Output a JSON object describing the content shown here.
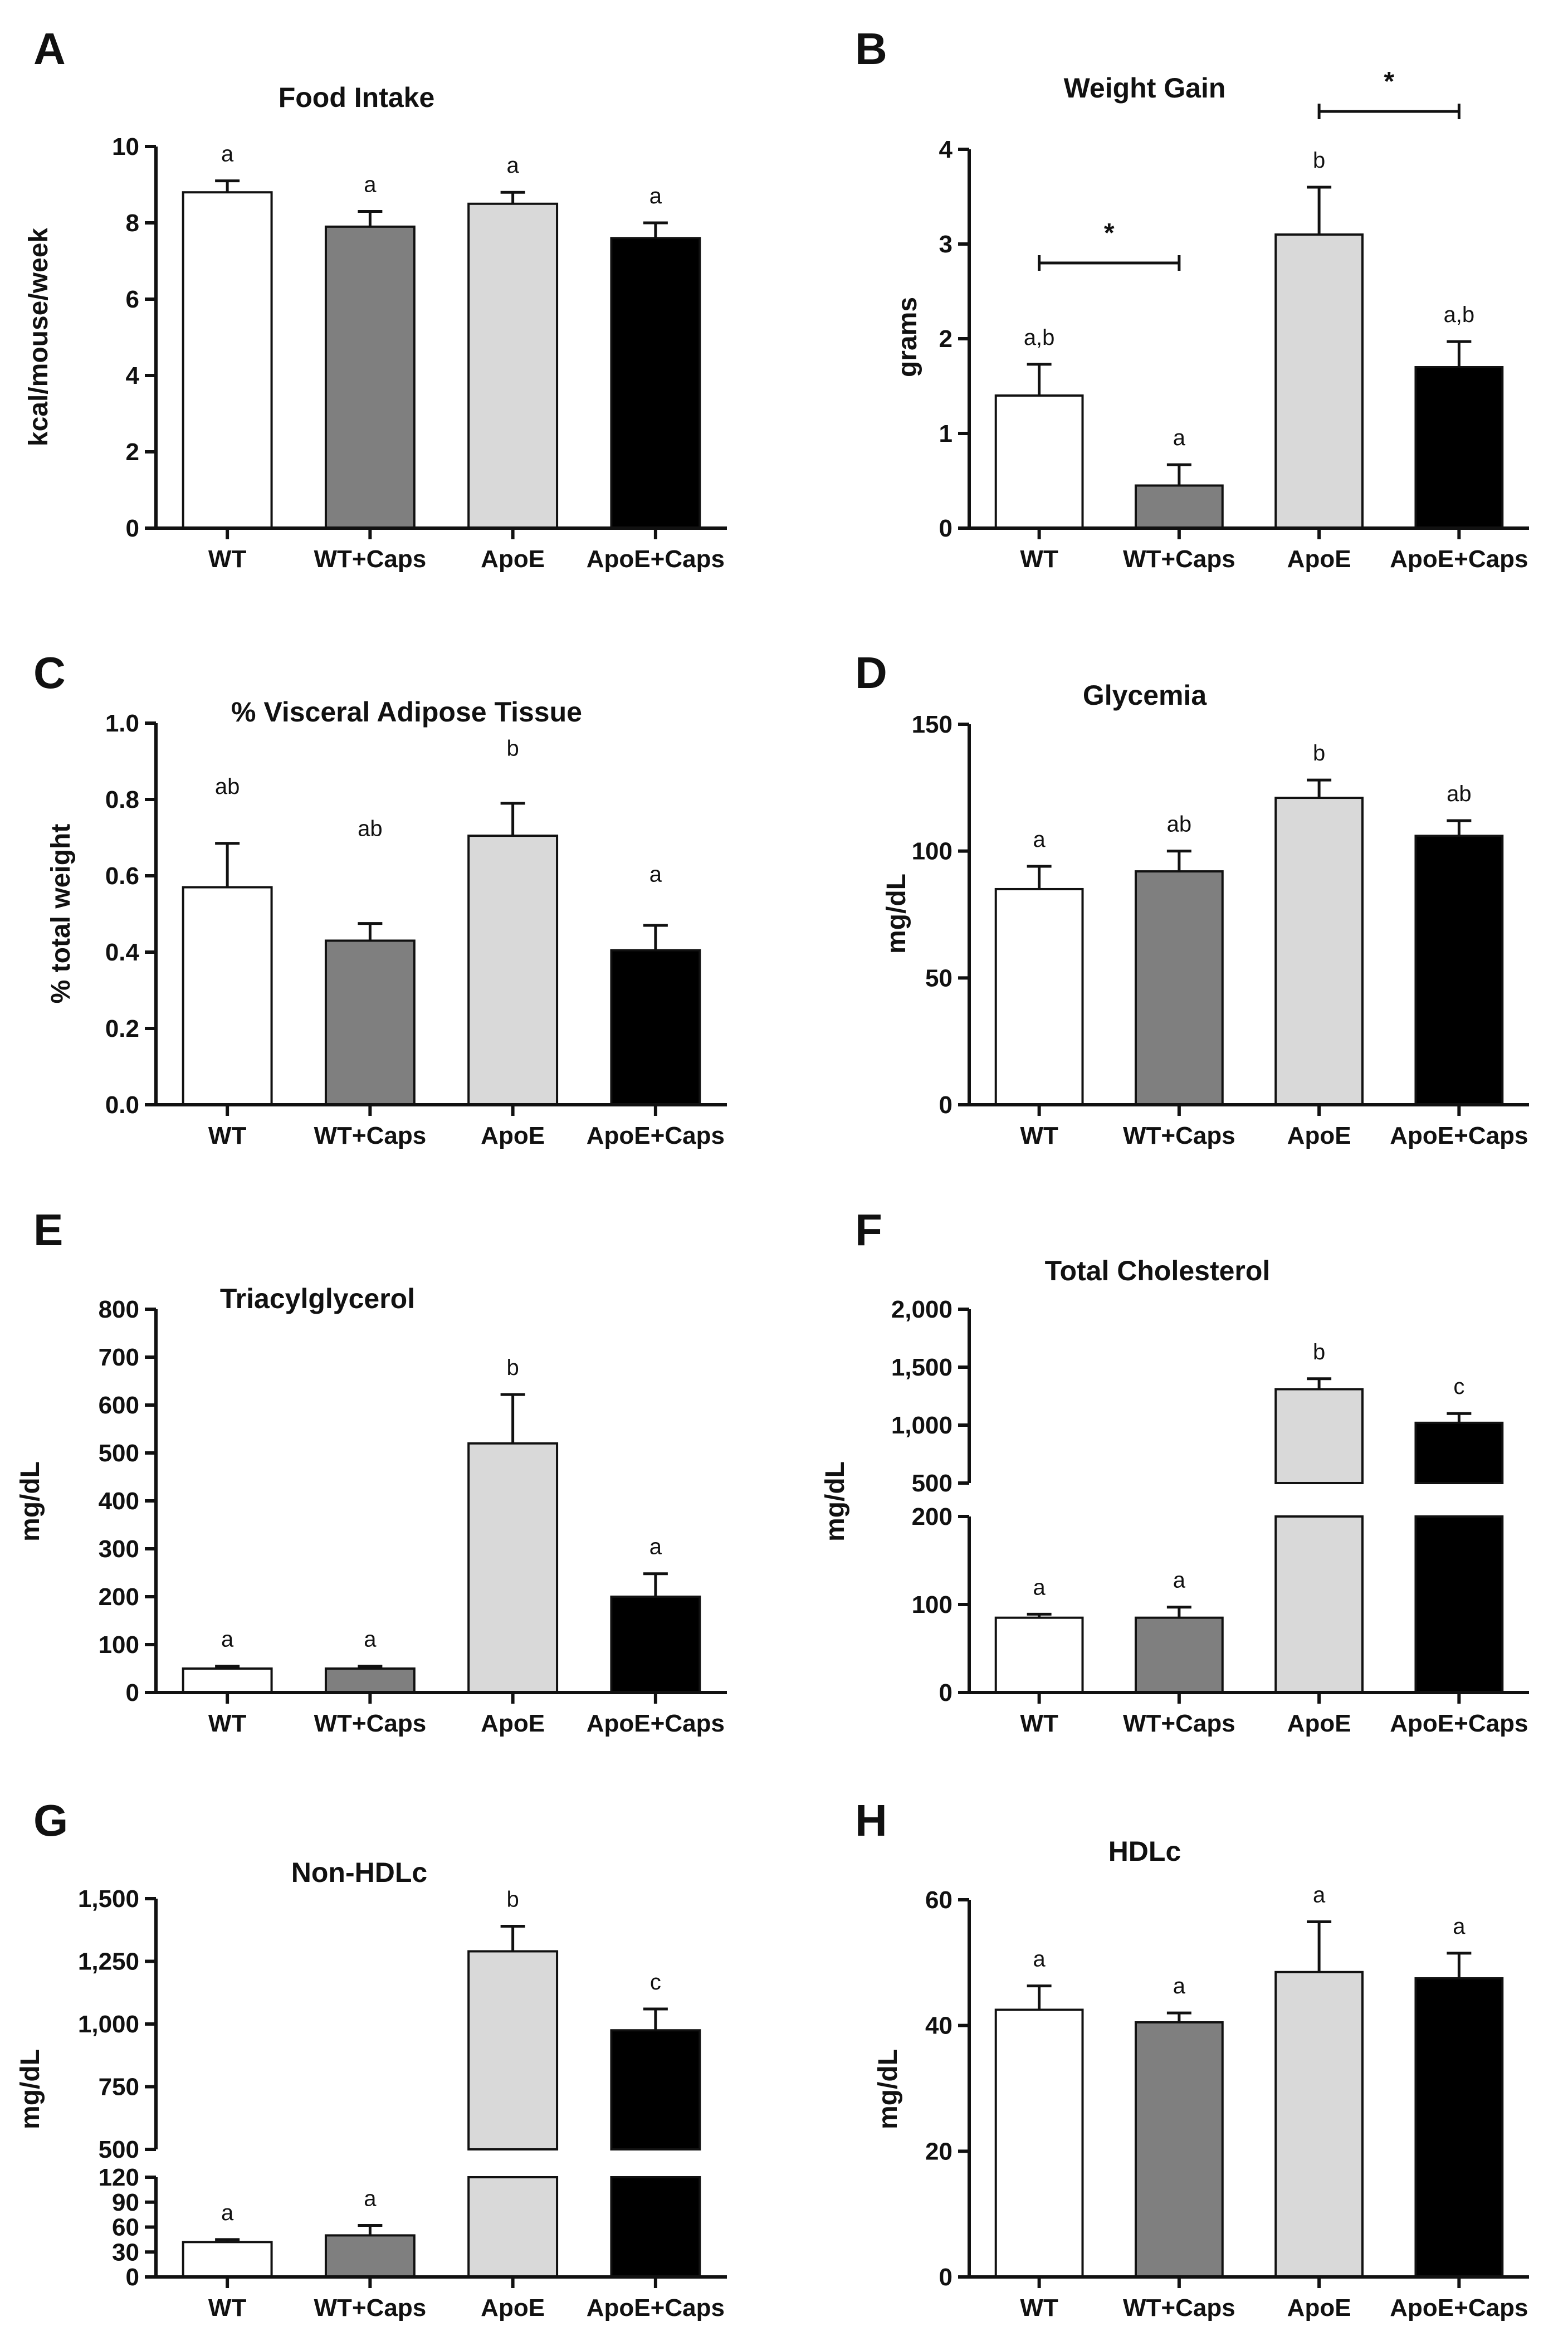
{
  "figure_colors": {
    "WT": "#ffffff",
    "WT+Caps": "#7f7f7f",
    "ApoE": "#d9d9d9",
    "ApoE+Caps": "#000000"
  },
  "chart_data": [
    {
      "panel": "A",
      "type": "bar",
      "title": "Food Intake",
      "ylabel": "kcal/mouse/week",
      "categories": [
        "WT",
        "WT+Caps",
        "ApoE",
        "ApoE+Caps"
      ],
      "values": [
        8.8,
        7.9,
        8.5,
        7.6
      ],
      "errors": [
        0.3,
        0.4,
        0.3,
        0.4
      ],
      "letters": [
        "a",
        "a",
        "a",
        "a"
      ],
      "ylim": [
        0,
        10
      ],
      "yticks": [
        0,
        2,
        4,
        6,
        8,
        10
      ],
      "ytick_labels": [
        "0",
        "2",
        "4",
        "6",
        "8",
        "10"
      ]
    },
    {
      "panel": "B",
      "type": "bar",
      "title": "Weight Gain",
      "ylabel": "grams",
      "categories": [
        "WT",
        "WT+Caps",
        "ApoE",
        "ApoE+Caps"
      ],
      "values": [
        1.4,
        0.45,
        3.1,
        1.7
      ],
      "errors": [
        0.33,
        0.22,
        0.5,
        0.27
      ],
      "letters": [
        "a,b",
        "a",
        "b",
        "a,b"
      ],
      "ylim": [
        0,
        4
      ],
      "yticks": [
        0,
        1,
        2,
        3,
        4
      ],
      "ytick_labels": [
        "0",
        "1",
        "2",
        "3",
        "4"
      ],
      "brackets": [
        {
          "from": 0,
          "to": 1,
          "y": 2.8,
          "label": "*"
        },
        {
          "from": 2,
          "to": 3,
          "y": 4.4,
          "label": "*"
        }
      ]
    },
    {
      "panel": "C",
      "type": "bar",
      "title": "% Visceral Adipose Tissue",
      "ylabel": "% total weight",
      "categories": [
        "WT",
        "WT+Caps",
        "ApoE",
        "ApoE+Caps"
      ],
      "values": [
        0.57,
        0.43,
        0.705,
        0.405
      ],
      "errors": [
        0.115,
        0.045,
        0.085,
        0.065
      ],
      "letters": [
        "ab",
        "ab",
        "b",
        "a"
      ],
      "letter_y": [
        0.8,
        0.69,
        0.9,
        0.57
      ],
      "ylim": [
        0,
        1
      ],
      "yticks": [
        0,
        0.2,
        0.4,
        0.6,
        0.8,
        1.0
      ],
      "ytick_labels": [
        "0.0",
        "0.2",
        "0.4",
        "0.6",
        "0.8",
        "1.0"
      ]
    },
    {
      "panel": "D",
      "type": "bar",
      "title": "Glycemia",
      "ylabel": "mg/dL",
      "categories": [
        "WT",
        "WT+Caps",
        "ApoE",
        "ApoE+Caps"
      ],
      "values": [
        85,
        92,
        121,
        106
      ],
      "errors": [
        9,
        8,
        7,
        6
      ],
      "letters": [
        "a",
        "ab",
        "b",
        "ab"
      ],
      "ylim": [
        0,
        150
      ],
      "yticks": [
        0,
        50,
        100,
        150
      ],
      "ytick_labels": [
        "0",
        "50",
        "100",
        "150"
      ]
    },
    {
      "panel": "E",
      "type": "bar",
      "title": "Triacylglycerol",
      "ylabel": "mg/dL",
      "categories": [
        "WT",
        "WT+Caps",
        "ApoE",
        "ApoE+Caps"
      ],
      "values": [
        50,
        50,
        520,
        200
      ],
      "errors": [
        5,
        5,
        102,
        48
      ],
      "letters": [
        "a",
        "a",
        "b",
        "a"
      ],
      "ylim": [
        0,
        800
      ],
      "yticks": [
        0,
        100,
        200,
        300,
        400,
        500,
        600,
        700,
        800
      ],
      "ytick_labels": [
        "0",
        "100",
        "200",
        "300",
        "400",
        "500",
        "600",
        "700",
        "800"
      ]
    },
    {
      "panel": "F",
      "type": "bar",
      "title": "Total Cholesterol",
      "ylabel": "mg/dL",
      "categories": [
        "WT",
        "WT+Caps",
        "ApoE",
        "ApoE+Caps"
      ],
      "values": [
        85,
        85,
        1310,
        1020
      ],
      "errors": [
        4,
        12,
        90,
        80
      ],
      "letters": [
        "a",
        "a",
        "b",
        "c"
      ],
      "axis_break": {
        "lower_range": [
          0,
          200
        ],
        "upper_range": [
          500,
          2000
        ]
      },
      "yticks": [
        0,
        100,
        200,
        500,
        1000,
        1500,
        2000
      ],
      "ytick_labels": [
        "0",
        "100",
        "200",
        "500",
        "1,000",
        "1,500",
        "2,000"
      ]
    },
    {
      "panel": "G",
      "type": "bar",
      "title": "Non-HDLc",
      "ylabel": "mg/dL",
      "categories": [
        "WT",
        "WT+Caps",
        "ApoE",
        "ApoE+Caps"
      ],
      "values": [
        42,
        50,
        1290,
        975
      ],
      "errors": [
        3,
        12,
        100,
        85
      ],
      "letters": [
        "a",
        "a",
        "b",
        "c"
      ],
      "axis_break": {
        "lower_range": [
          0,
          120
        ],
        "upper_range": [
          500,
          1500
        ]
      },
      "yticks": [
        0,
        30,
        60,
        90,
        120,
        500,
        750,
        1000,
        1250,
        1500
      ],
      "ytick_labels": [
        "0",
        "30",
        "60",
        "90",
        "120",
        "500",
        "750",
        "1,000",
        "1,250",
        "1,500"
      ]
    },
    {
      "panel": "H",
      "type": "bar",
      "title": "HDLc",
      "ylabel": "mg/dL",
      "categories": [
        "WT",
        "WT+Caps",
        "ApoE",
        "ApoE+Caps"
      ],
      "values": [
        42.5,
        40.5,
        48.5,
        47.5
      ],
      "errors": [
        3.8,
        1.5,
        8,
        4
      ],
      "letters": [
        "a",
        "a",
        "a",
        "a"
      ],
      "ylim": [
        0,
        60
      ],
      "yticks": [
        0,
        20,
        40,
        60
      ],
      "ytick_labels": [
        "0",
        "20",
        "40",
        "60"
      ]
    }
  ]
}
